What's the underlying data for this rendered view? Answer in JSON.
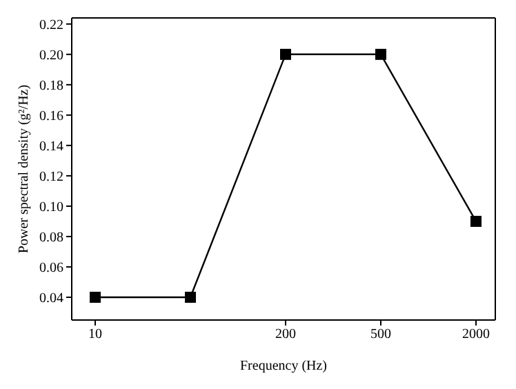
{
  "chart_data": {
    "type": "line",
    "xlabel": "Frequency (Hz)",
    "ylabel": "Power spectral density (g²/Hz)",
    "categories": [
      "10",
      null,
      "200",
      "500",
      "2000"
    ],
    "series": [
      {
        "color": "#000000",
        "values": [
          0.04,
          0.04,
          0.2,
          0.2,
          0.09
        ]
      }
    ],
    "ylim": [
      0.025,
      0.224
    ],
    "yticks": [
      0.04,
      0.06,
      0.08,
      {
        "value": 0.1,
        "label": "0.10"
      },
      0.12,
      0.14,
      0.16,
      0.18,
      {
        "value": 0.2,
        "label": "0.20"
      },
      0.22
    ],
    "marker": "square",
    "line_style": "solid",
    "grid": false
  }
}
